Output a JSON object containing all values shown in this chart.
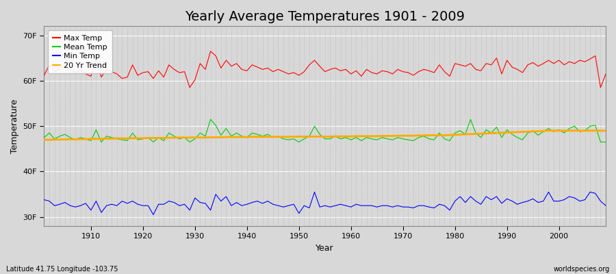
{
  "title": "Yearly Average Temperatures 1901 - 2009",
  "xlabel": "Year",
  "ylabel": "Temperature",
  "subtitle_left": "Latitude 41.75 Longitude -103.75",
  "subtitle_right": "worldspecies.org",
  "years": [
    1901,
    1902,
    1903,
    1904,
    1905,
    1906,
    1907,
    1908,
    1909,
    1910,
    1911,
    1912,
    1913,
    1914,
    1915,
    1916,
    1917,
    1918,
    1919,
    1920,
    1921,
    1922,
    1923,
    1924,
    1925,
    1926,
    1927,
    1928,
    1929,
    1930,
    1931,
    1932,
    1933,
    1934,
    1935,
    1936,
    1937,
    1938,
    1939,
    1940,
    1941,
    1942,
    1943,
    1944,
    1945,
    1946,
    1947,
    1948,
    1949,
    1950,
    1951,
    1952,
    1953,
    1954,
    1955,
    1956,
    1957,
    1958,
    1959,
    1960,
    1961,
    1962,
    1963,
    1964,
    1965,
    1966,
    1967,
    1968,
    1969,
    1970,
    1971,
    1972,
    1973,
    1974,
    1975,
    1976,
    1977,
    1978,
    1979,
    1980,
    1981,
    1982,
    1983,
    1984,
    1985,
    1986,
    1987,
    1988,
    1989,
    1990,
    1991,
    1992,
    1993,
    1994,
    1995,
    1996,
    1997,
    1998,
    1999,
    2000,
    2001,
    2002,
    2003,
    2004,
    2005,
    2006,
    2007,
    2008,
    2009
  ],
  "max_temp": [
    61.2,
    63.5,
    62.0,
    62.8,
    63.2,
    62.5,
    61.8,
    62.3,
    61.5,
    61.0,
    65.0,
    60.8,
    62.5,
    62.0,
    61.5,
    60.5,
    60.8,
    63.5,
    61.2,
    61.8,
    62.0,
    60.5,
    62.2,
    60.8,
    63.5,
    62.5,
    61.8,
    62.0,
    58.5,
    60.2,
    63.8,
    62.5,
    66.5,
    65.5,
    62.8,
    64.5,
    63.2,
    63.8,
    62.5,
    62.2,
    63.5,
    63.0,
    62.5,
    62.8,
    62.0,
    62.5,
    62.0,
    61.5,
    61.8,
    61.2,
    62.0,
    63.5,
    64.5,
    63.2,
    62.0,
    62.5,
    62.8,
    62.2,
    62.5,
    61.5,
    62.2,
    61.0,
    62.5,
    61.8,
    61.5,
    62.2,
    62.0,
    61.5,
    62.5,
    62.0,
    61.8,
    61.2,
    62.0,
    62.5,
    62.2,
    61.8,
    63.5,
    62.0,
    61.0,
    63.8,
    63.5,
    63.2,
    63.8,
    62.5,
    62.2,
    63.8,
    63.5,
    65.0,
    61.5,
    64.5,
    63.0,
    62.5,
    61.8,
    63.5,
    64.0,
    63.2,
    63.8,
    64.5,
    63.8,
    64.5,
    63.5,
    64.2,
    63.8,
    64.5,
    64.2,
    64.8,
    65.5,
    58.5,
    61.5
  ],
  "mean_temp": [
    47.5,
    48.5,
    47.2,
    47.8,
    48.2,
    47.5,
    47.0,
    47.5,
    47.2,
    46.8,
    49.2,
    46.5,
    47.8,
    47.5,
    47.2,
    47.0,
    46.8,
    48.5,
    47.0,
    47.2,
    47.5,
    46.5,
    47.5,
    46.8,
    48.5,
    47.8,
    47.2,
    47.5,
    46.5,
    47.2,
    48.5,
    47.8,
    51.5,
    50.2,
    48.0,
    49.5,
    47.8,
    48.5,
    47.8,
    47.5,
    48.5,
    48.2,
    47.8,
    48.2,
    47.5,
    47.8,
    47.2,
    47.0,
    47.2,
    46.5,
    47.2,
    47.8,
    50.0,
    48.2,
    47.2,
    47.2,
    47.8,
    47.2,
    47.5,
    47.0,
    47.5,
    46.8,
    47.5,
    47.2,
    47.0,
    47.5,
    47.2,
    47.0,
    47.5,
    47.2,
    47.0,
    46.8,
    47.5,
    47.8,
    47.2,
    47.0,
    48.5,
    47.2,
    46.8,
    48.5,
    49.0,
    48.2,
    51.5,
    48.5,
    47.5,
    49.2,
    48.5,
    49.8,
    47.5,
    49.2,
    48.2,
    47.5,
    47.0,
    48.5,
    49.0,
    48.0,
    48.8,
    49.5,
    48.8,
    49.2,
    48.5,
    49.5,
    50.0,
    48.8,
    49.0,
    50.0,
    50.2,
    46.5,
    46.5
  ],
  "min_temp": [
    33.8,
    33.5,
    32.5,
    32.8,
    33.2,
    32.5,
    32.2,
    32.5,
    33.0,
    31.5,
    33.5,
    31.0,
    32.5,
    32.8,
    32.5,
    33.5,
    33.0,
    33.5,
    32.8,
    32.5,
    32.5,
    30.5,
    32.8,
    32.8,
    33.5,
    33.2,
    32.5,
    32.8,
    31.5,
    34.2,
    33.2,
    33.0,
    31.5,
    35.0,
    33.5,
    34.5,
    32.5,
    33.2,
    32.5,
    32.8,
    33.2,
    33.5,
    33.0,
    33.5,
    32.8,
    32.5,
    32.2,
    32.5,
    32.8,
    30.8,
    32.5,
    32.0,
    35.5,
    32.2,
    32.5,
    32.2,
    32.5,
    32.8,
    32.5,
    32.2,
    32.8,
    32.5,
    32.5,
    32.5,
    32.2,
    32.5,
    32.5,
    32.2,
    32.5,
    32.2,
    32.2,
    32.0,
    32.5,
    32.5,
    32.2,
    32.0,
    32.8,
    32.5,
    31.5,
    33.5,
    34.5,
    33.2,
    34.5,
    33.5,
    32.8,
    34.5,
    33.8,
    34.5,
    33.0,
    34.0,
    33.5,
    32.8,
    33.2,
    33.5,
    34.0,
    33.2,
    33.5,
    35.5,
    33.5,
    33.5,
    33.8,
    34.5,
    34.2,
    33.5,
    33.8,
    35.5,
    35.2,
    33.5,
    32.5
  ],
  "trend_values": [
    47.0,
    47.0,
    47.05,
    47.05,
    47.1,
    47.1,
    47.1,
    47.15,
    47.15,
    47.2,
    47.2,
    47.2,
    47.25,
    47.25,
    47.3,
    47.3,
    47.3,
    47.35,
    47.35,
    47.35,
    47.4,
    47.4,
    47.4,
    47.4,
    47.45,
    47.45,
    47.5,
    47.5,
    47.5,
    47.5,
    47.5,
    47.5,
    47.55,
    47.55,
    47.55,
    47.6,
    47.6,
    47.6,
    47.6,
    47.6,
    47.65,
    47.65,
    47.65,
    47.65,
    47.65,
    47.65,
    47.65,
    47.65,
    47.7,
    47.7,
    47.7,
    47.7,
    47.7,
    47.7,
    47.7,
    47.7,
    47.75,
    47.75,
    47.75,
    47.75,
    47.8,
    47.8,
    47.8,
    47.8,
    47.8,
    47.85,
    47.85,
    47.85,
    47.9,
    47.9,
    47.9,
    47.9,
    47.95,
    47.95,
    48.0,
    48.0,
    48.0,
    48.0,
    48.05,
    48.1,
    48.15,
    48.2,
    48.25,
    48.3,
    48.35,
    48.4,
    48.45,
    48.5,
    48.55,
    48.6,
    48.65,
    48.7,
    48.75,
    48.8,
    48.85,
    48.9,
    48.95,
    49.0,
    49.0,
    49.0,
    49.0,
    49.0,
    49.0,
    49.0,
    49.0,
    49.0,
    49.0,
    49.0,
    49.0
  ],
  "max_color": "#ff0000",
  "mean_color": "#00cc00",
  "min_color": "#0000ff",
  "trend_color": "#ffaa00",
  "bg_color": "#d8d8d8",
  "plot_bg_color": "#d8d8d8",
  "grid_h_color": "#ffffff",
  "grid_v_color": "#bbbbbb",
  "ylim_min": 28,
  "ylim_max": 72,
  "yticks": [
    30,
    40,
    50,
    60,
    70
  ],
  "ytick_labels": [
    "30F",
    "40F",
    "50F",
    "60F",
    "70F"
  ],
  "xlim_min": 1901,
  "xlim_max": 2009,
  "xticks": [
    1910,
    1920,
    1930,
    1940,
    1950,
    1960,
    1970,
    1980,
    1990,
    2000
  ],
  "all_years_grid": [
    1901,
    1902,
    1903,
    1904,
    1905,
    1906,
    1907,
    1908,
    1909,
    1910,
    1911,
    1912,
    1913,
    1914,
    1915,
    1916,
    1917,
    1918,
    1919,
    1920,
    1921,
    1922,
    1923,
    1924,
    1925,
    1926,
    1927,
    1928,
    1929,
    1930,
    1931,
    1932,
    1933,
    1934,
    1935,
    1936,
    1937,
    1938,
    1939,
    1940,
    1941,
    1942,
    1943,
    1944,
    1945,
    1946,
    1947,
    1948,
    1949,
    1950,
    1951,
    1952,
    1953,
    1954,
    1955,
    1956,
    1957,
    1958,
    1959,
    1960,
    1961,
    1962,
    1963,
    1964,
    1965,
    1966,
    1967,
    1968,
    1969,
    1970,
    1971,
    1972,
    1973,
    1974,
    1975,
    1976,
    1977,
    1978,
    1979,
    1980,
    1981,
    1982,
    1983,
    1984,
    1985,
    1986,
    1987,
    1988,
    1989,
    1990,
    1991,
    1992,
    1993,
    1994,
    1995,
    1996,
    1997,
    1998,
    1999,
    2000,
    2001,
    2002,
    2003,
    2004,
    2005,
    2006,
    2007,
    2008,
    2009
  ],
  "legend_labels": [
    "Max Temp",
    "Mean Temp",
    "Min Temp",
    "20 Yr Trend"
  ],
  "legend_colors": [
    "#ff0000",
    "#00cc00",
    "#0000ff",
    "#ffaa00"
  ],
  "title_fontsize": 14,
  "axis_label_fontsize": 9,
  "tick_fontsize": 8,
  "legend_fontsize": 8
}
